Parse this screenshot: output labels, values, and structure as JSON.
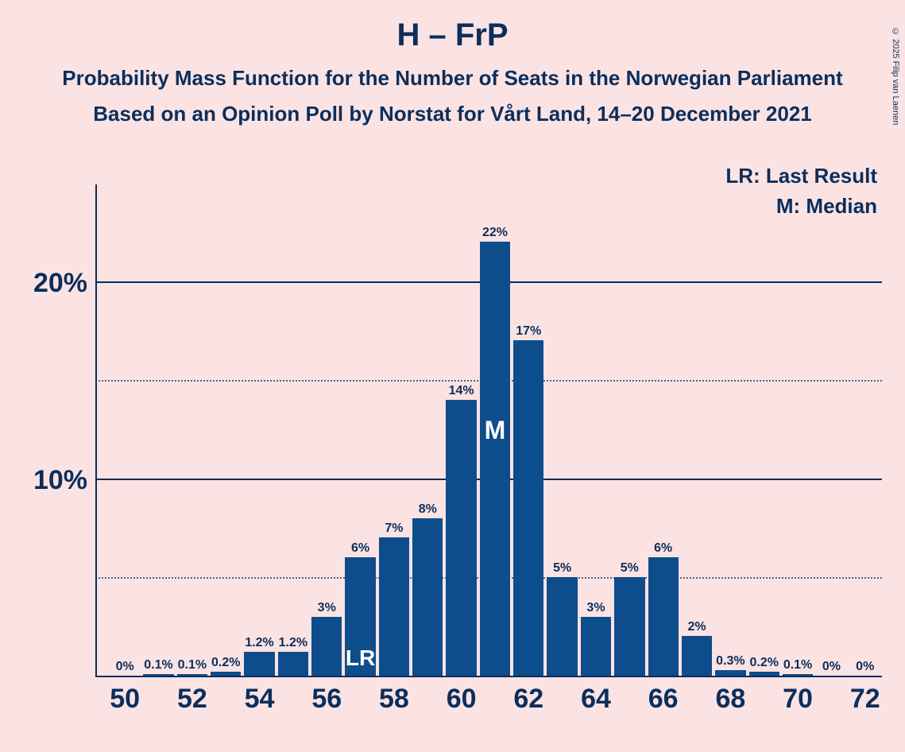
{
  "title": "H – FrP",
  "subtitle1": "Probability Mass Function for the Number of Seats in the Norwegian Parliament",
  "subtitle2": "Based on an Opinion Poll by Norstat for Vårt Land, 14–20 December 2021",
  "copyright": "© 2025 Filip van Laenen",
  "legend": {
    "lr": "LR: Last Result",
    "m": "M: Median"
  },
  "chart": {
    "type": "bar",
    "background_color": "#fbe3e3",
    "bar_color": "#0e4d8c",
    "axis_color": "#0b2e5c",
    "text_color": "#0b2e5c",
    "marker_text_color": "#ffffff",
    "title_fontsize": 40,
    "subtitle_fontsize": 26,
    "axis_label_fontsize": 34,
    "bar_label_fontsize": 16,
    "legend_fontsize": 26,
    "ylim": [
      0,
      25
    ],
    "y_ticks_labeled": [
      10,
      20
    ],
    "y_gridlines": [
      {
        "value": 5,
        "style": "dotted"
      },
      {
        "value": 10,
        "style": "solid"
      },
      {
        "value": 15,
        "style": "dotted"
      },
      {
        "value": 20,
        "style": "solid"
      }
    ],
    "x_categories": [
      50,
      51,
      52,
      53,
      54,
      55,
      56,
      57,
      58,
      59,
      60,
      61,
      62,
      63,
      64,
      65,
      66,
      67,
      68,
      69,
      70,
      71,
      72
    ],
    "x_tick_step": 2,
    "values": [
      0,
      0.1,
      0.1,
      0.2,
      1.2,
      1.2,
      3,
      6,
      7,
      8,
      14,
      22,
      17,
      5,
      3,
      5,
      6,
      2,
      0.3,
      0.2,
      0.1,
      0,
      0
    ],
    "value_labels": [
      "0%",
      "0.1%",
      "0.1%",
      "0.2%",
      "1.2%",
      "1.2%",
      "3%",
      "6%",
      "7%",
      "8%",
      "14%",
      "22%",
      "17%",
      "5%",
      "3%",
      "5%",
      "6%",
      "2%",
      "0.3%",
      "0.2%",
      "0.1%",
      "0%",
      "0%"
    ],
    "markers": {
      "LR": 57,
      "M": 61
    }
  }
}
